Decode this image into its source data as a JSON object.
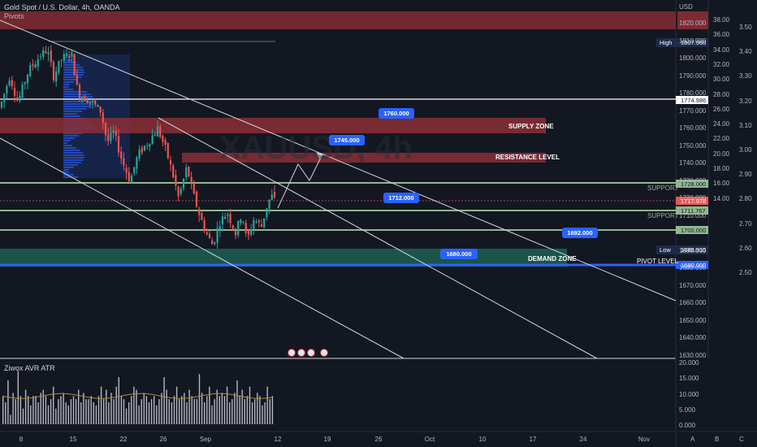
{
  "header": {
    "symbol": "Gold Spot / U.S. Dollar, 4h, OANDA",
    "indicator": "Pivots",
    "currency": "USD"
  },
  "price_axis": {
    "ticks": [
      "1820.000",
      "1810.000",
      "1800.000",
      "1790.000",
      "1780.000",
      "1770.000",
      "1760.000",
      "1750.000",
      "1740.000",
      "1730.000",
      "1720.000",
      "1710.000",
      "1690.000",
      "1680.000",
      "1670.000",
      "1660.000",
      "1650.000",
      "1640.000",
      "1630.000"
    ],
    "high": {
      "label": "High",
      "value": "1807.960"
    },
    "low": {
      "label": "Low",
      "value": "1688.915"
    },
    "marks": {
      "price_white": "1774.986",
      "support_1": "1728.000",
      "current": "1717.978",
      "support_2": "1711.767",
      "level_1700": "1700.000",
      "pivot": "1680.000"
    }
  },
  "atr_axis": {
    "ticks": [
      "38.00",
      "36.00",
      "34.00",
      "32.00",
      "30.00",
      "28.00",
      "26.00",
      "24.00",
      "22.00",
      "20.00",
      "18.00",
      "16.00",
      "14.00"
    ]
  },
  "ratio_axis": {
    "ticks": [
      "3.50",
      "3.40",
      "3.30",
      "3.20",
      "3.10",
      "3.00",
      "2.90",
      "2.80",
      "2.70",
      "2.60",
      "2.50"
    ],
    "letters": [
      "A",
      "B",
      "C"
    ]
  },
  "zones": {
    "supply": "SUPPLY ZONE",
    "resistance": "RESISTANCE LEVEL",
    "support_1": "SUPPORT",
    "support_2": "SUPPORT",
    "demand": "DEMAND ZONE",
    "pivot": "PIVOT LEVEL"
  },
  "callouts": [
    "1760.000",
    "1745.000",
    "1712.000",
    "1692.000",
    "1680.000"
  ],
  "watermark": "XAUUSD, 4h",
  "lower_pane": {
    "title": "Ziwox AVR ATR",
    "ticks": [
      "20.000",
      "15.000",
      "10.000",
      "5.000",
      "0.000"
    ]
  },
  "time_axis": [
    "8",
    "15",
    "22",
    "26",
    "Sep",
    "12",
    "19",
    "26",
    "Oct",
    "10",
    "17",
    "24",
    "Nov"
  ],
  "colors": {
    "background": "#131722",
    "bull": "#26a69a",
    "bear": "#ef5350",
    "supply": "#8b2f36",
    "demand": "#1e5f52",
    "accent": "#2962ff",
    "support_line": "#8fb88f"
  },
  "chart_data": {
    "type": "candlestick",
    "atr_bars": [
      9,
      7,
      14,
      3,
      10,
      8,
      17,
      9,
      5,
      11,
      9,
      6,
      9,
      9,
      7,
      10,
      11,
      9,
      6,
      8,
      12,
      5,
      8,
      9,
      10,
      7,
      6,
      8,
      9,
      8,
      11,
      7,
      10,
      8,
      8,
      9,
      7,
      6,
      9,
      12,
      8,
      11,
      7,
      10,
      8,
      12,
      15,
      9,
      8,
      5,
      7,
      9,
      12,
      11,
      6,
      8,
      10,
      9,
      7,
      8,
      9,
      6,
      8,
      10,
      15,
      11,
      8,
      7,
      9,
      12,
      8,
      9,
      10,
      7,
      11,
      9,
      8,
      8,
      16,
      10,
      7,
      9,
      12,
      6,
      8,
      11,
      9,
      10,
      9,
      12,
      7,
      8,
      10,
      14,
      9,
      11,
      8,
      9,
      12,
      7,
      8,
      10,
      9,
      6,
      7,
      12,
      8,
      9
    ]
  }
}
